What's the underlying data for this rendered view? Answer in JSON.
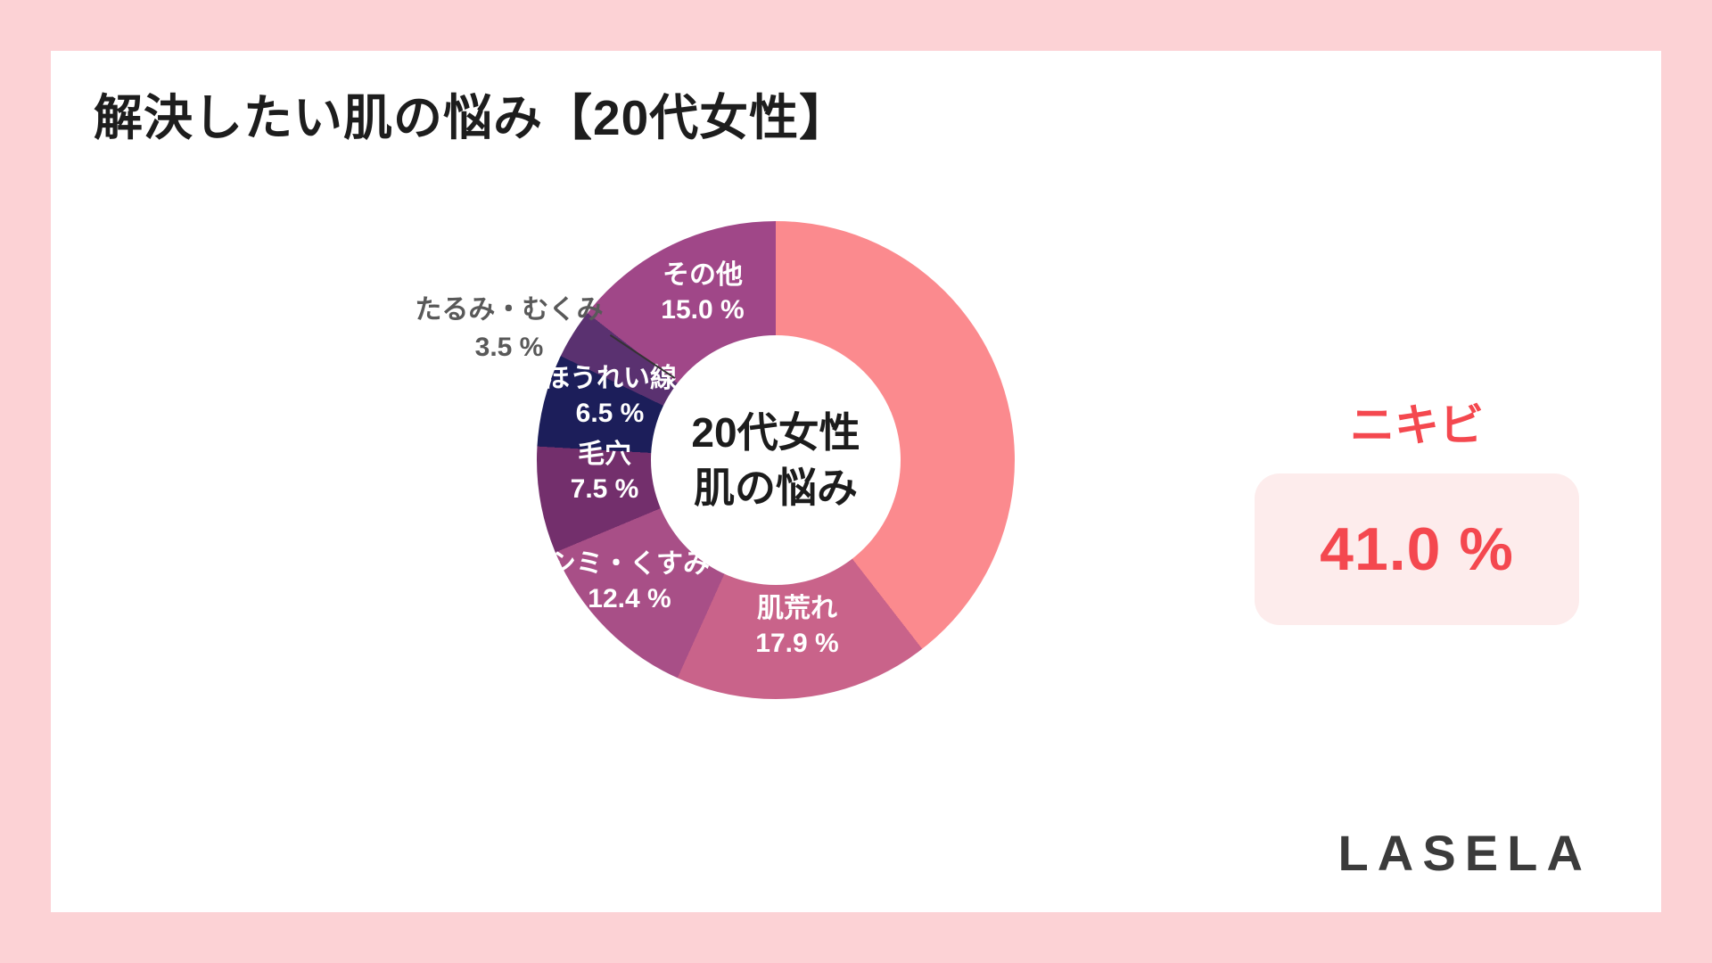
{
  "title": "解決したい肌の悩み【20代女性】",
  "logo": "LASELA",
  "highlight": {
    "label": "ニキビ",
    "value_label": "41.0 %"
  },
  "chart_data": {
    "type": "pie",
    "subtype": "donut",
    "title": "解決したい肌の悩み【20代女性】",
    "center_label": {
      "line1": "20代女性",
      "line2": "肌の悩み"
    },
    "start_angle_deg": 0,
    "direction": "clockwise",
    "legend_position": "none",
    "categories": [
      "ニキビ",
      "肌荒れ",
      "シミ・くすみ",
      "毛穴",
      "ほうれい線",
      "たるみ・むくみ",
      "その他"
    ],
    "values": [
      41.0,
      17.9,
      12.4,
      7.5,
      6.5,
      3.5,
      15.0
    ],
    "slices": [
      {
        "label": "ニキビ",
        "value": 41.0,
        "value_label": "41.0 %",
        "color": "#fb8a8e",
        "label_style": "external-panel"
      },
      {
        "label": "肌荒れ",
        "value": 17.9,
        "value_label": "17.9 %",
        "color": "#c9638a",
        "label_style": "inside"
      },
      {
        "label": "シミ・くすみ",
        "value": 12.4,
        "value_label": "12.4 %",
        "color": "#a84f87",
        "label_style": "inside"
      },
      {
        "label": "毛穴",
        "value": 7.5,
        "value_label": "7.5 %",
        "color": "#732f6c",
        "label_style": "inside"
      },
      {
        "label": "ほうれい線",
        "value": 6.5,
        "value_label": "6.5 %",
        "color": "#1c1e5a",
        "label_style": "inside"
      },
      {
        "label": "たるみ・むくみ",
        "value": 3.5,
        "value_label": "3.5 %",
        "color": "#5a3170",
        "label_style": "outside-callout"
      },
      {
        "label": "その他",
        "value": 15.0,
        "value_label": "15.0 %",
        "color": "#a04788",
        "label_style": "inside"
      }
    ],
    "colors": {
      "background_frame": "#fcd2d5",
      "card": "#ffffff",
      "highlight_text": "#f4484f",
      "highlight_box": "#fdecec",
      "inside_label_text": "#ffffff",
      "outside_label_text": "#595959",
      "center_text": "#1c1c1c"
    }
  }
}
